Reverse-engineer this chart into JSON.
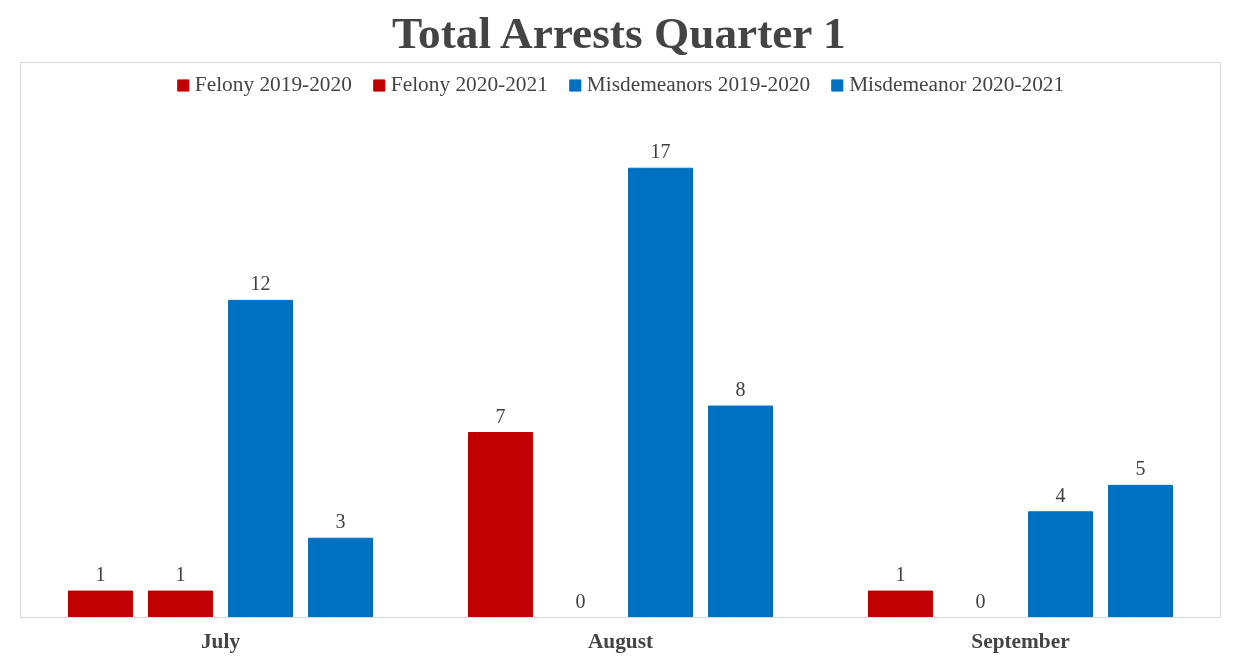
{
  "chart_data": {
    "type": "bar",
    "title": "Total Arrests Quarter 1",
    "categories": [
      "July",
      "August",
      "September"
    ],
    "series": [
      {
        "name": "Felony 2019-2020",
        "color": "#c00000",
        "values": [
          1,
          7,
          1
        ]
      },
      {
        "name": "Felony 2020-2021",
        "color": "#c00000",
        "values": [
          1,
          0,
          0
        ]
      },
      {
        "name": "Misdemeanors 2019-2020",
        "color": "#0070c0",
        "values": [
          12,
          17,
          4
        ]
      },
      {
        "name": "Misdemeanor 2020-2021",
        "color": "#0070c0",
        "values": [
          3,
          8,
          5
        ]
      }
    ],
    "ylim": [
      0,
      21
    ],
    "data_labels": true,
    "legend": "top",
    "grid": false,
    "tick_labels": "x"
  }
}
